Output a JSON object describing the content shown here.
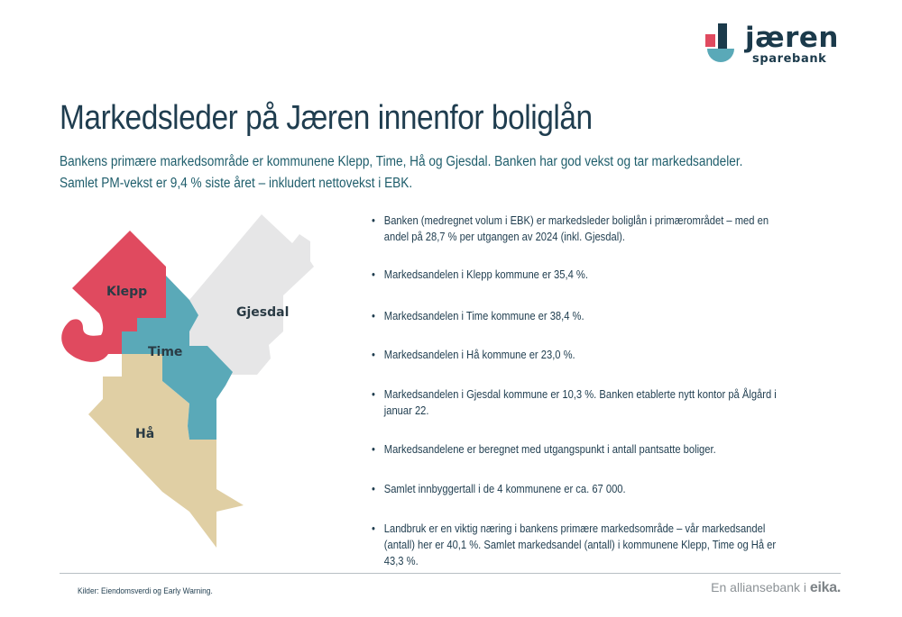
{
  "logo": {
    "wordmark": "jæren",
    "submark": "sparebank",
    "colors": {
      "red": "#e04a5f",
      "teal": "#5aa9b8",
      "navy": "#1b3a4b"
    }
  },
  "title": "Markedsleder på Jæren innenfor boliglån",
  "subtitle": [
    "Bankens primære markedsområde er kommunene Klepp, Time, Hå og Gjesdal. Banken har god vekst og tar markedsandeler.",
    "Samlet PM-vekst er 9,4 % siste året – inkludert nettovekst i EBK."
  ],
  "map": {
    "regions": [
      {
        "name": "Klepp",
        "color": "#e04a5f"
      },
      {
        "name": "Time",
        "color": "#5aa9b8"
      },
      {
        "name": "Gjesdal",
        "color": "#e6e6e7"
      },
      {
        "name": "Hå",
        "color": "#e0cfa4"
      }
    ]
  },
  "bullets": [
    "Banken (medregnet volum i EBK) er markedsleder boliglån i primærområdet – med en andel på 28,7 % per utgangen av 2024 (inkl. Gjesdal).",
    "Markedsandelen i Klepp kommune er 35,4 %.",
    "Markedsandelen i Time kommune er 38,4 %.",
    "Markedsandelen i Hå kommune er 23,0 %.",
    "Markedsandelen i Gjesdal kommune er 10,3 %. Banken etablerte nytt kontor på Ålgård i januar 22.",
    "Markedsandelene er beregnet med utgangspunkt i antall pantsatte boliger.",
    "Samlet innbyggertall i de 4 kommunene er ca. 67 000.",
    "Landbruk er en viktig næring i bankens primære markedsområde – vår markedsandel (antall) her er 40,1 %. Samlet markedsandel (antall) i kommunene Klepp, Time og Hå er 43,3 %."
  ],
  "footer": {
    "source": "Kilder: Eiendomsverdi og Early Warning.",
    "alliance_text": "En alliansebank i",
    "alliance_brand": "eika."
  }
}
